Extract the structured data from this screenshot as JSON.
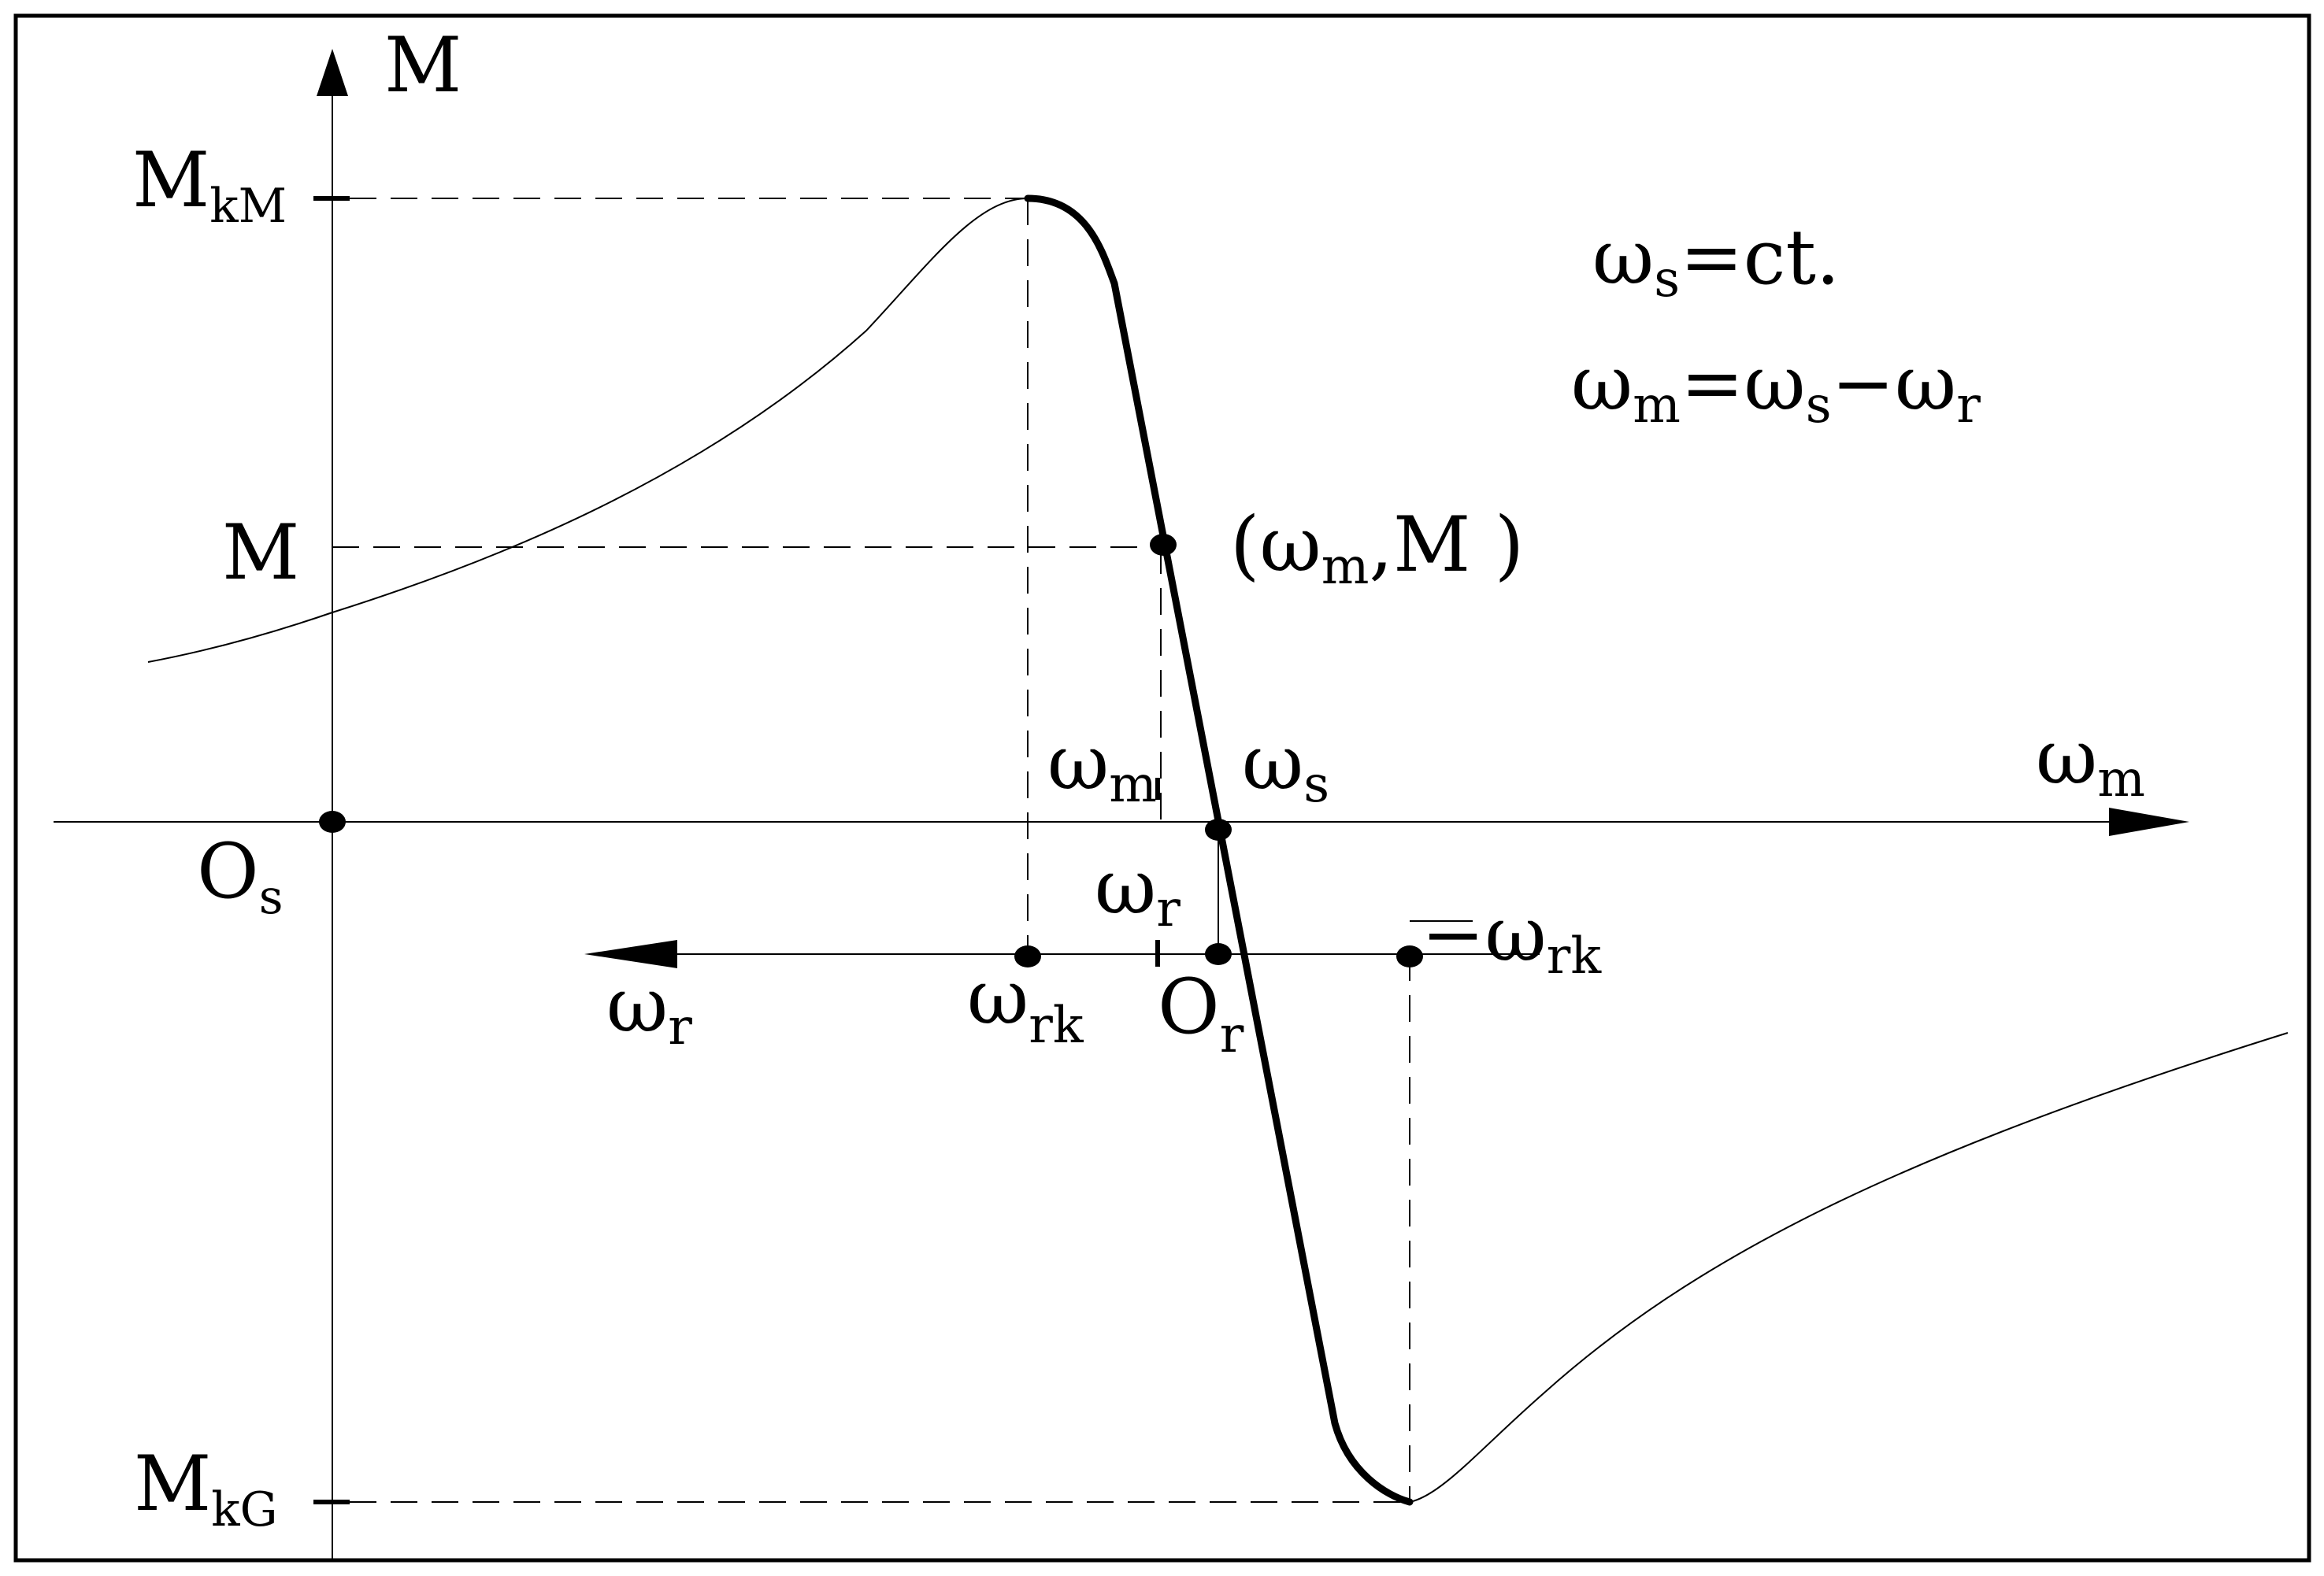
{
  "diagram": {
    "labels": {
      "axis_y_main": "M",
      "y_tick_top_main": "M",
      "y_tick_top_sub": "kM",
      "y_tick_mid": "M",
      "y_tick_bottom_main": "M",
      "y_tick_bottom_sub": "kG",
      "origin_s_main": "O",
      "origin_s_sub": "s",
      "axis_x_main": "ω",
      "axis_x_sub": "m",
      "point_wm_main": "ω",
      "point_wm_sub": "m",
      "point_ws_main": "ω",
      "point_ws_sub": "s",
      "point_wr_main": "ω",
      "point_wr_sub": "r",
      "point_neg_wrk_main": "−ω",
      "point_neg_wrk_sub": "rk",
      "axis_r_main": "ω",
      "axis_r_sub": "r",
      "point_wrk_main": "ω",
      "point_wrk_sub": "rk",
      "origin_r_main": "O",
      "origin_r_sub": "r",
      "operating_point_open": "(ω",
      "operating_point_sub": "m",
      "operating_point_close": ",M )",
      "eq1_w": "ω",
      "eq1_sub": "s",
      "eq1_rest": "=ct.",
      "eq2_w1": "ω",
      "eq2_sub1": "m",
      "eq2_mid": "=ω",
      "eq2_sub2": "s",
      "eq2_minus": "−ω",
      "eq2_sub3": "r"
    }
  }
}
